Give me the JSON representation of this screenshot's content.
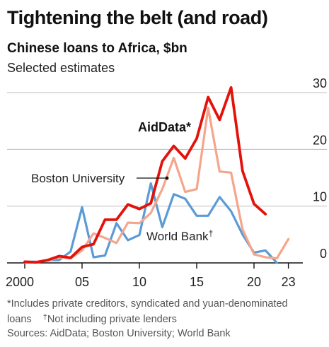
{
  "header": {
    "title": "Tightening the belt (and road)",
    "subtitle": "Chinese loans to Africa, $bn",
    "note": "Selected estimates"
  },
  "footer": {
    "footnote_line1": "*Includes private creditors, syndicated and yuan-denominated",
    "footnote_line2a": "loans",
    "dagger": "†",
    "footnote_line2b": "Not including private lenders",
    "sources": "Sources: AidData; Boston University; World Bank"
  },
  "colors": {
    "aiddata": "#e3120b",
    "boston": "#f5a58b",
    "worldbank": "#5b9bd5",
    "grid": "#bdbdbd",
    "axis": "#121212",
    "text": "#222222"
  },
  "chart_data": {
    "type": "line",
    "ylim": [
      0,
      30
    ],
    "xlim": [
      1999.5,
      2023.5
    ],
    "yticks": [
      0,
      10,
      20,
      30
    ],
    "ytick_labels": [
      "0",
      "10",
      "20",
      "30"
    ],
    "xticks": [
      2000,
      2005,
      2010,
      2015,
      2020,
      2023
    ],
    "xtick_labels": [
      "2000",
      "05",
      "10",
      "15",
      "20",
      "23"
    ],
    "series": [
      {
        "key": "worldbank",
        "name": "World Bank",
        "label_suffix": "†",
        "x": [
          2000,
          2001,
          2002,
          2003,
          2004,
          2005,
          2006,
          2007,
          2008,
          2009,
          2010,
          2011,
          2012,
          2013,
          2014,
          2015,
          2016,
          2017,
          2018,
          2019,
          2020,
          2021,
          2022
        ],
        "y": [
          0.2,
          0.2,
          0.5,
          0.5,
          2.0,
          9.8,
          1.0,
          1.3,
          7.0,
          4.0,
          4.9,
          14.0,
          6.3,
          12.1,
          11.3,
          8.3,
          8.3,
          11.6,
          9.1,
          5.0,
          1.8,
          2.2,
          0
        ]
      },
      {
        "key": "boston",
        "name": "Boston University",
        "label_suffix": "",
        "x": [
          2000,
          2001,
          2002,
          2003,
          2004,
          2005,
          2006,
          2007,
          2008,
          2009,
          2010,
          2011,
          2012,
          2013,
          2014,
          2015,
          2016,
          2017,
          2018,
          2019,
          2020,
          2021,
          2022,
          2023
        ],
        "y": [
          0.1,
          0.2,
          0.4,
          1.0,
          0.8,
          2.2,
          5.2,
          4.4,
          3.5,
          7.1,
          7.0,
          8.8,
          13.0,
          18.5,
          12.5,
          13.0,
          27.3,
          16.1,
          15.9,
          5.9,
          1.5,
          1.0,
          0.8,
          4.2
        ]
      },
      {
        "key": "aiddata",
        "name": "AidData",
        "label_suffix": "*",
        "x": [
          2000,
          2001,
          2002,
          2003,
          2004,
          2005,
          2006,
          2007,
          2008,
          2009,
          2010,
          2011,
          2012,
          2013,
          2014,
          2015,
          2016,
          2017,
          2018,
          2019,
          2020,
          2021
        ],
        "y": [
          0.2,
          0.1,
          0.5,
          1.2,
          0.9,
          2.8,
          3.3,
          7.6,
          7.6,
          10.3,
          9.5,
          10.5,
          17.9,
          20.6,
          18.4,
          21.9,
          29.2,
          25.2,
          30.9,
          16.2,
          10.4,
          8.6
        ]
      }
    ]
  }
}
